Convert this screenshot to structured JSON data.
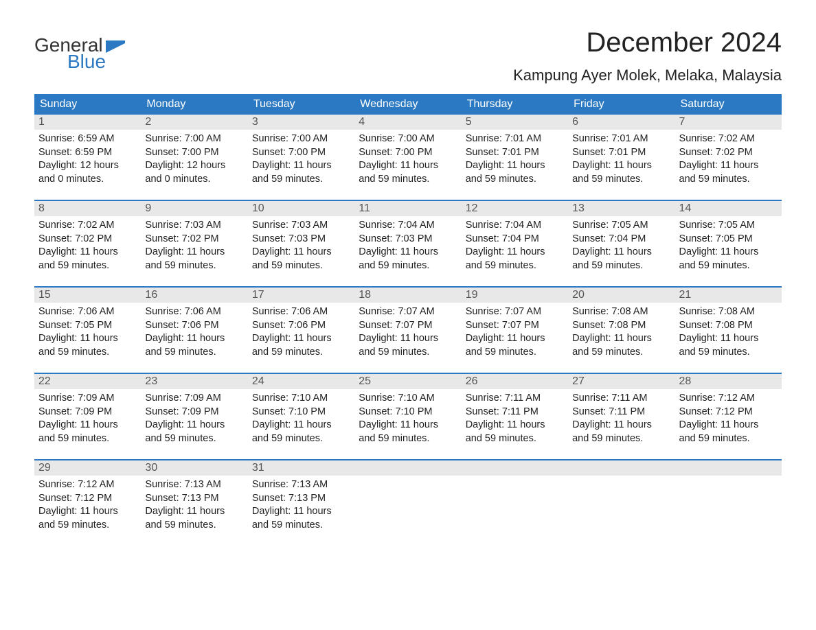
{
  "logo": {
    "text1": "General",
    "text2": "Blue",
    "flag_color": "#2b79c2"
  },
  "title": "December 2024",
  "location": "Kampung Ayer Molek, Melaka, Malaysia",
  "colors": {
    "header_bg": "#2b79c2",
    "header_text": "#ffffff",
    "daynum_bg": "#e8e8e8",
    "daynum_text": "#555555",
    "body_text": "#222222",
    "week_border": "#2b79c2"
  },
  "weekdays": [
    "Sunday",
    "Monday",
    "Tuesday",
    "Wednesday",
    "Thursday",
    "Friday",
    "Saturday"
  ],
  "weeks": [
    [
      {
        "n": "1",
        "sunrise": "Sunrise: 6:59 AM",
        "sunset": "Sunset: 6:59 PM",
        "d1": "Daylight: 12 hours",
        "d2": "and 0 minutes."
      },
      {
        "n": "2",
        "sunrise": "Sunrise: 7:00 AM",
        "sunset": "Sunset: 7:00 PM",
        "d1": "Daylight: 12 hours",
        "d2": "and 0 minutes."
      },
      {
        "n": "3",
        "sunrise": "Sunrise: 7:00 AM",
        "sunset": "Sunset: 7:00 PM",
        "d1": "Daylight: 11 hours",
        "d2": "and 59 minutes."
      },
      {
        "n": "4",
        "sunrise": "Sunrise: 7:00 AM",
        "sunset": "Sunset: 7:00 PM",
        "d1": "Daylight: 11 hours",
        "d2": "and 59 minutes."
      },
      {
        "n": "5",
        "sunrise": "Sunrise: 7:01 AM",
        "sunset": "Sunset: 7:01 PM",
        "d1": "Daylight: 11 hours",
        "d2": "and 59 minutes."
      },
      {
        "n": "6",
        "sunrise": "Sunrise: 7:01 AM",
        "sunset": "Sunset: 7:01 PM",
        "d1": "Daylight: 11 hours",
        "d2": "and 59 minutes."
      },
      {
        "n": "7",
        "sunrise": "Sunrise: 7:02 AM",
        "sunset": "Sunset: 7:02 PM",
        "d1": "Daylight: 11 hours",
        "d2": "and 59 minutes."
      }
    ],
    [
      {
        "n": "8",
        "sunrise": "Sunrise: 7:02 AM",
        "sunset": "Sunset: 7:02 PM",
        "d1": "Daylight: 11 hours",
        "d2": "and 59 minutes."
      },
      {
        "n": "9",
        "sunrise": "Sunrise: 7:03 AM",
        "sunset": "Sunset: 7:02 PM",
        "d1": "Daylight: 11 hours",
        "d2": "and 59 minutes."
      },
      {
        "n": "10",
        "sunrise": "Sunrise: 7:03 AM",
        "sunset": "Sunset: 7:03 PM",
        "d1": "Daylight: 11 hours",
        "d2": "and 59 minutes."
      },
      {
        "n": "11",
        "sunrise": "Sunrise: 7:04 AM",
        "sunset": "Sunset: 7:03 PM",
        "d1": "Daylight: 11 hours",
        "d2": "and 59 minutes."
      },
      {
        "n": "12",
        "sunrise": "Sunrise: 7:04 AM",
        "sunset": "Sunset: 7:04 PM",
        "d1": "Daylight: 11 hours",
        "d2": "and 59 minutes."
      },
      {
        "n": "13",
        "sunrise": "Sunrise: 7:05 AM",
        "sunset": "Sunset: 7:04 PM",
        "d1": "Daylight: 11 hours",
        "d2": "and 59 minutes."
      },
      {
        "n": "14",
        "sunrise": "Sunrise: 7:05 AM",
        "sunset": "Sunset: 7:05 PM",
        "d1": "Daylight: 11 hours",
        "d2": "and 59 minutes."
      }
    ],
    [
      {
        "n": "15",
        "sunrise": "Sunrise: 7:06 AM",
        "sunset": "Sunset: 7:05 PM",
        "d1": "Daylight: 11 hours",
        "d2": "and 59 minutes."
      },
      {
        "n": "16",
        "sunrise": "Sunrise: 7:06 AM",
        "sunset": "Sunset: 7:06 PM",
        "d1": "Daylight: 11 hours",
        "d2": "and 59 minutes."
      },
      {
        "n": "17",
        "sunrise": "Sunrise: 7:06 AM",
        "sunset": "Sunset: 7:06 PM",
        "d1": "Daylight: 11 hours",
        "d2": "and 59 minutes."
      },
      {
        "n": "18",
        "sunrise": "Sunrise: 7:07 AM",
        "sunset": "Sunset: 7:07 PM",
        "d1": "Daylight: 11 hours",
        "d2": "and 59 minutes."
      },
      {
        "n": "19",
        "sunrise": "Sunrise: 7:07 AM",
        "sunset": "Sunset: 7:07 PM",
        "d1": "Daylight: 11 hours",
        "d2": "and 59 minutes."
      },
      {
        "n": "20",
        "sunrise": "Sunrise: 7:08 AM",
        "sunset": "Sunset: 7:08 PM",
        "d1": "Daylight: 11 hours",
        "d2": "and 59 minutes."
      },
      {
        "n": "21",
        "sunrise": "Sunrise: 7:08 AM",
        "sunset": "Sunset: 7:08 PM",
        "d1": "Daylight: 11 hours",
        "d2": "and 59 minutes."
      }
    ],
    [
      {
        "n": "22",
        "sunrise": "Sunrise: 7:09 AM",
        "sunset": "Sunset: 7:09 PM",
        "d1": "Daylight: 11 hours",
        "d2": "and 59 minutes."
      },
      {
        "n": "23",
        "sunrise": "Sunrise: 7:09 AM",
        "sunset": "Sunset: 7:09 PM",
        "d1": "Daylight: 11 hours",
        "d2": "and 59 minutes."
      },
      {
        "n": "24",
        "sunrise": "Sunrise: 7:10 AM",
        "sunset": "Sunset: 7:10 PM",
        "d1": "Daylight: 11 hours",
        "d2": "and 59 minutes."
      },
      {
        "n": "25",
        "sunrise": "Sunrise: 7:10 AM",
        "sunset": "Sunset: 7:10 PM",
        "d1": "Daylight: 11 hours",
        "d2": "and 59 minutes."
      },
      {
        "n": "26",
        "sunrise": "Sunrise: 7:11 AM",
        "sunset": "Sunset: 7:11 PM",
        "d1": "Daylight: 11 hours",
        "d2": "and 59 minutes."
      },
      {
        "n": "27",
        "sunrise": "Sunrise: 7:11 AM",
        "sunset": "Sunset: 7:11 PM",
        "d1": "Daylight: 11 hours",
        "d2": "and 59 minutes."
      },
      {
        "n": "28",
        "sunrise": "Sunrise: 7:12 AM",
        "sunset": "Sunset: 7:12 PM",
        "d1": "Daylight: 11 hours",
        "d2": "and 59 minutes."
      }
    ],
    [
      {
        "n": "29",
        "sunrise": "Sunrise: 7:12 AM",
        "sunset": "Sunset: 7:12 PM",
        "d1": "Daylight: 11 hours",
        "d2": "and 59 minutes."
      },
      {
        "n": "30",
        "sunrise": "Sunrise: 7:13 AM",
        "sunset": "Sunset: 7:13 PM",
        "d1": "Daylight: 11 hours",
        "d2": "and 59 minutes."
      },
      {
        "n": "31",
        "sunrise": "Sunrise: 7:13 AM",
        "sunset": "Sunset: 7:13 PM",
        "d1": "Daylight: 11 hours",
        "d2": "and 59 minutes."
      },
      {
        "n": "",
        "empty": true
      },
      {
        "n": "",
        "empty": true
      },
      {
        "n": "",
        "empty": true
      },
      {
        "n": "",
        "empty": true
      }
    ]
  ]
}
